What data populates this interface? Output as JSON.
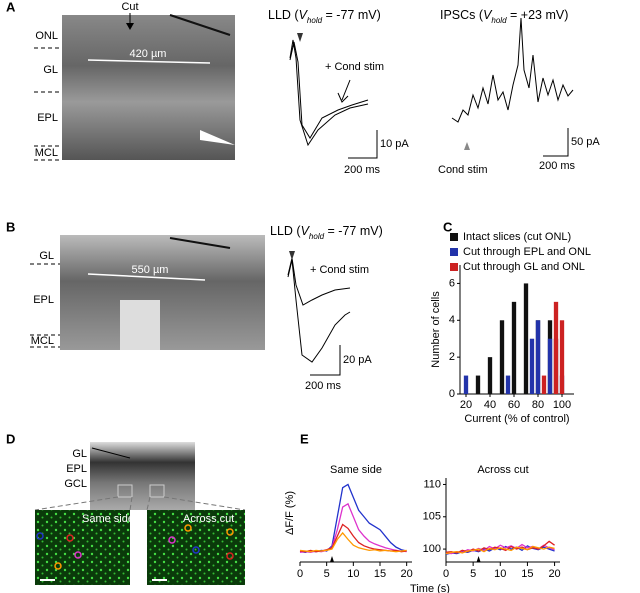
{
  "panels": {
    "a": {
      "label": "A",
      "cut": "Cut",
      "layers": [
        "ONL",
        "GL",
        "EPL",
        "MCL"
      ],
      "distance": "420 µm",
      "lld_title": {
        "pre": "LLD (",
        "v": "V",
        "sub": "hold",
        "post": " = -77 mV)"
      },
      "cond_stim": "+ Cond stim",
      "scale_y": "10 pA",
      "scale_x": "200 ms",
      "ipsc_title": {
        "pre": "IPSCs (",
        "v": "V",
        "sub": "hold",
        "post": " = +23 mV)"
      },
      "ipsc_stim": "Cond stim",
      "ipsc_scale_y": "50 pA",
      "ipsc_scale_x": "200 ms"
    },
    "b": {
      "label": "B",
      "layers": [
        "GL",
        "EPL",
        "MCL"
      ],
      "distance": "550 µm",
      "lld_title": {
        "pre": "LLD (",
        "v": "V",
        "sub": "hold",
        "post": " = -77 mV)"
      },
      "cond_stim": "+ Cond stim",
      "scale_y": "20 pA",
      "scale_x": "200 ms"
    },
    "c": {
      "label": "C"
    },
    "d": {
      "label": "D",
      "layers": [
        "GL",
        "EPL",
        "GCL"
      ],
      "inset_left": "Same side",
      "inset_right": "Across cut"
    },
    "e": {
      "label": "E"
    }
  },
  "chart_data": [
    {
      "type": "bar",
      "xlabel": "Current (% of control)",
      "ylabel": "Number of cells",
      "xlim": [
        15,
        110
      ],
      "xticks": [
        20,
        40,
        60,
        80,
        100
      ],
      "ylim": [
        0,
        7
      ],
      "yticks": [
        0,
        2,
        4,
        6
      ],
      "series": [
        {
          "name": "Intact slices (cut ONL)",
          "color": "#111111",
          "x": [
            30,
            40,
            50,
            60,
            70,
            80,
            90,
            95
          ],
          "values": [
            1,
            2,
            4,
            5,
            6,
            4,
            4,
            3
          ]
        },
        {
          "name": "Cut through EPL and ONL",
          "color": "#2233aa",
          "x": [
            20,
            55,
            75,
            80,
            90,
            100
          ],
          "values": [
            1,
            1,
            3,
            4,
            3,
            1
          ]
        },
        {
          "name": "Cut through GL and ONL",
          "color": "#cc2222",
          "x": [
            85,
            95,
            100
          ],
          "values": [
            1,
            5,
            4
          ]
        }
      ]
    },
    {
      "type": "line",
      "title": "Same side",
      "ylabel": "ΔF/F (%)",
      "xlabel": "Time (s)",
      "xlim": [
        0,
        21
      ],
      "xticks": [
        0,
        5,
        10,
        15,
        20
      ],
      "ylim": [
        98,
        111
      ],
      "x": [
        0,
        1,
        2,
        3,
        4,
        5,
        6,
        7,
        8,
        9,
        10,
        11,
        12,
        13,
        14,
        15,
        16,
        17,
        18,
        19,
        20
      ],
      "series": [
        {
          "color": "#2233cc",
          "values": [
            99.6,
            99.5,
            99.7,
            99.6,
            99.8,
            99.7,
            100.5,
            105,
            109.5,
            110,
            108,
            106,
            105,
            104,
            103.5,
            103,
            102,
            101,
            100.3,
            99.9,
            99.7
          ]
        },
        {
          "color": "#dd33cc",
          "values": [
            99.5,
            99.6,
            99.5,
            99.7,
            99.6,
            99.8,
            100.3,
            103,
            106.5,
            107,
            105,
            103,
            102,
            101.2,
            100.8,
            100.5,
            100.2,
            100,
            99.8,
            99.7,
            99.6
          ]
        },
        {
          "color": "#dd2222",
          "values": [
            99.7,
            99.6,
            99.8,
            99.6,
            99.7,
            99.9,
            100.2,
            102,
            103.8,
            103.2,
            102,
            101,
            100.5,
            100.2,
            100,
            99.9,
            99.8,
            99.7,
            99.8,
            99.6,
            99.7
          ]
        },
        {
          "color": "#ff9900",
          "values": [
            99.8,
            99.7,
            99.6,
            99.8,
            99.7,
            99.8,
            100,
            101.5,
            102.5,
            101.5,
            100.6,
            100.2,
            100,
            99.8,
            99.9,
            99.7,
            99.8,
            99.7,
            99.6,
            99.7,
            99.8
          ]
        }
      ]
    },
    {
      "type": "line",
      "title": "Across cut",
      "xlim": [
        0,
        21
      ],
      "xticks": [
        0,
        5,
        10,
        15,
        20
      ],
      "ylim": [
        98,
        111
      ],
      "yticks": [
        100,
        105,
        110
      ],
      "x": [
        0,
        1,
        2,
        3,
        4,
        5,
        6,
        7,
        8,
        9,
        10,
        11,
        12,
        13,
        14,
        15,
        16,
        17,
        18,
        19,
        20
      ],
      "series": [
        {
          "color": "#2233cc",
          "values": [
            99.2,
            99.4,
            99.3,
            99.6,
            99.5,
            99.8,
            99.6,
            100,
            99.7,
            100.2,
            99.9,
            100.4,
            100,
            100.3,
            99.8,
            100.5,
            100.1,
            99.9,
            100.3,
            100,
            99.7
          ]
        },
        {
          "color": "#dd33cc",
          "values": [
            99.4,
            99.3,
            99.6,
            99.5,
            99.9,
            99.7,
            100.1,
            99.8,
            100.4,
            100,
            100.6,
            100.2,
            100.5,
            100.1,
            100.7,
            100.2,
            100.4,
            100,
            100.6,
            100.2,
            99.9
          ]
        },
        {
          "color": "#dd2222",
          "values": [
            99.5,
            99.6,
            99.4,
            99.8,
            99.6,
            100,
            99.7,
            100.2,
            99.9,
            100.3,
            100.1,
            99.8,
            100.4,
            100,
            100.3,
            99.9,
            100.2,
            100,
            100.5,
            101.2,
            100.6
          ]
        },
        {
          "color": "#ff9900",
          "values": [
            99.3,
            99.5,
            99.6,
            99.4,
            99.7,
            99.8,
            100,
            99.6,
            100.1,
            99.9,
            100.2,
            100,
            99.8,
            100.3,
            100.1,
            99.9,
            100.4,
            100.2,
            100,
            100.3,
            100.1
          ]
        }
      ]
    }
  ]
}
